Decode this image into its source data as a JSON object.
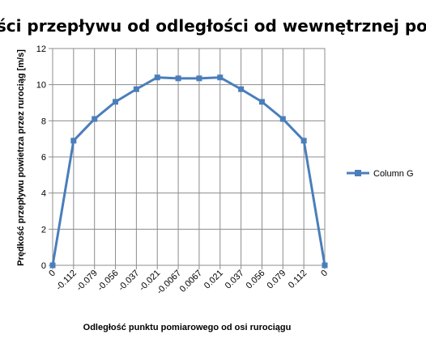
{
  "chart_data": {
    "type": "line",
    "title": "Zależność prędkości przepływu od odległości od wewnętrznej powierzchni",
    "xlabel": "Odległość punktu pomiarowego od osi rurociągu",
    "ylabel": "Prędkość przepływu powietrza przez rurociąg [m/s]",
    "categories": [
      "0",
      "-0.112",
      "-0.079",
      "-0.056",
      "-0.037",
      "-0.021",
      "-0.0067",
      "0.0067",
      "0.021",
      "0.037",
      "0.056",
      "0.079",
      "0.112",
      "0"
    ],
    "ylim": [
      0,
      12
    ],
    "yticks": [
      "0",
      "2",
      "4",
      "6",
      "8",
      "10",
      "12"
    ],
    "grid": true,
    "legend_position": "right",
    "series": [
      {
        "name": "Column G",
        "color": "#4a7ebb",
        "values": [
          0,
          6.9,
          8.1,
          9.05,
          9.75,
          10.4,
          10.35,
          10.35,
          10.4,
          9.75,
          9.05,
          8.1,
          6.9,
          0
        ]
      }
    ]
  }
}
